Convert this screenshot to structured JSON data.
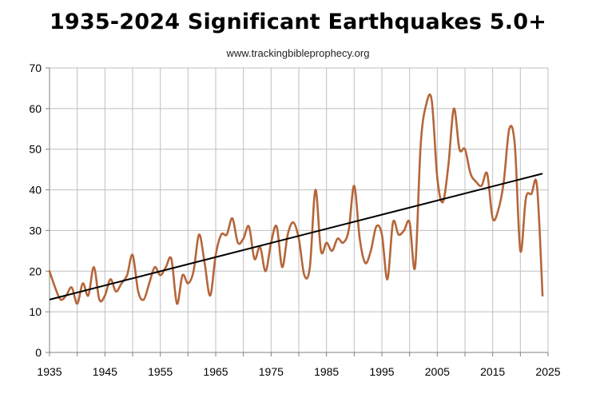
{
  "chart_data": {
    "type": "line",
    "title": "1935-2024 Significant Earthquakes 5.0+",
    "subtitle": "www.trackingbibleprophecy.org",
    "xlabel": "",
    "ylabel": "",
    "xlim": [
      1935,
      2025
    ],
    "ylim": [
      0,
      70
    ],
    "x_ticks": [
      1935,
      1945,
      1955,
      1965,
      1975,
      1985,
      1995,
      2005,
      2015,
      2025
    ],
    "y_ticks": [
      0,
      10,
      20,
      30,
      40,
      50,
      60,
      70
    ],
    "grid": true,
    "legend": "none",
    "colors": {
      "series": "#b5663a",
      "trend": "#000000",
      "grid": "#bfbfbf",
      "axis": "#808080"
    },
    "series": [
      {
        "x": [
          1935,
          1936,
          1937,
          1938,
          1939,
          1940,
          1941,
          1942,
          1943,
          1944,
          1945,
          1946,
          1947,
          1948,
          1949,
          1950,
          1951,
          1952,
          1953,
          1954,
          1955,
          1956,
          1957,
          1958,
          1959,
          1960,
          1961,
          1962,
          1963,
          1964,
          1965,
          1966,
          1967,
          1968,
          1969,
          1970,
          1971,
          1972,
          1973,
          1974,
          1975,
          1976,
          1977,
          1978,
          1979,
          1980,
          1981,
          1982,
          1983,
          1984,
          1985,
          1986,
          1987,
          1988,
          1989,
          1990,
          1991,
          1992,
          1993,
          1994,
          1995,
          1996,
          1997,
          1998,
          1999,
          2000,
          2001,
          2002,
          2003,
          2004,
          2005,
          2006,
          2007,
          2008,
          2009,
          2010,
          2011,
          2012,
          2013,
          2014,
          2015,
          2016,
          2017,
          2018,
          2019,
          2020,
          2021,
          2022,
          2023,
          2024
        ],
        "values": [
          20,
          16,
          13,
          14,
          16,
          12,
          17,
          14,
          21,
          13,
          14,
          18,
          15,
          17,
          19,
          24,
          15,
          13,
          17,
          21,
          19,
          21,
          23,
          12,
          19,
          17,
          20,
          29,
          22,
          14,
          24,
          29,
          29,
          33,
          27,
          28,
          31,
          23,
          26,
          20,
          27,
          31,
          21,
          29,
          32,
          28,
          19,
          21,
          40,
          25,
          27,
          25,
          28,
          27,
          30,
          41,
          28,
          22,
          25,
          31,
          29,
          18,
          32,
          29,
          30,
          32,
          21,
          51,
          61,
          62,
          43,
          37,
          46,
          60,
          50,
          50,
          44,
          42,
          41,
          44,
          33,
          35,
          42,
          55,
          51,
          25,
          38,
          39,
          41,
          14
        ]
      }
    ],
    "trendline": {
      "x": [
        1935,
        2024
      ],
      "values": [
        13,
        44
      ]
    }
  }
}
